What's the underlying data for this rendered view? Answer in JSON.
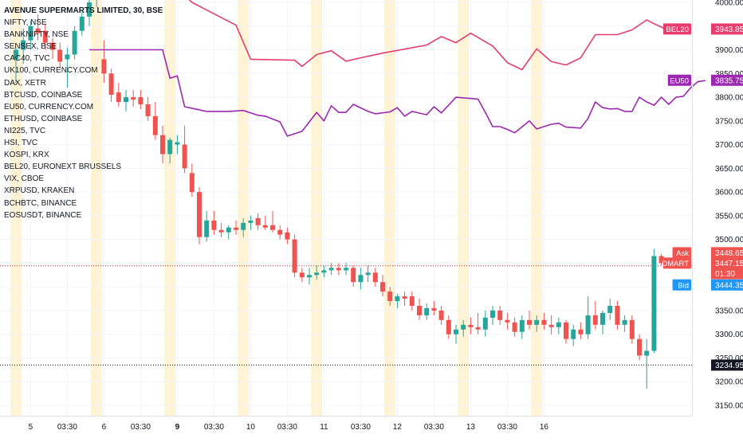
{
  "chart_data": {
    "type": "candlestick",
    "title": "AVENUE SUPERMARTS LIMITED, 30, BSE",
    "comparison_symbols": [
      "NIFTY, NSE",
      "BANKNIFTY, NSE",
      "SENSEX, BSE",
      "CAC40, TVC",
      "UK100, CURRENCY.COM",
      "DAX, XETR",
      "BTCUSD, COINBASE",
      "EU50, CURRENCY.COM",
      "ETHUSD, COINBASE",
      "NI225, TVC",
      "HSI, TVC",
      "KOSPI, KRX",
      "BEL20, EURONEXT BRUSSELS",
      "VIX, CBOE",
      "XRPUSD, KRAKEN",
      "BCHBTC, BINANCE",
      "EOSUSDT, BINANCE"
    ],
    "ylim": [
      3130,
      4030
    ],
    "y_ticks": [
      3150,
      3200,
      3250,
      3300,
      3350,
      3400,
      3450,
      3500,
      3550,
      3600,
      3650,
      3700,
      3750,
      3800,
      3850,
      3900,
      3950,
      4000
    ],
    "x_ticks": [
      {
        "label": "5",
        "bold": false,
        "i": 2
      },
      {
        "label": "03:30",
        "bold": false,
        "i": 7
      },
      {
        "label": "6",
        "bold": false,
        "i": 12
      },
      {
        "label": "03:30",
        "bold": false,
        "i": 17
      },
      {
        "label": "9",
        "bold": true,
        "i": 22
      },
      {
        "label": "03:30",
        "bold": false,
        "i": 27
      },
      {
        "label": "10",
        "bold": false,
        "i": 32
      },
      {
        "label": "03:30",
        "bold": false,
        "i": 37
      },
      {
        "label": "11",
        "bold": false,
        "i": 42
      },
      {
        "label": "03:30",
        "bold": false,
        "i": 47
      },
      {
        "label": "12",
        "bold": false,
        "i": 52
      },
      {
        "label": "03:30",
        "bold": false,
        "i": 57
      },
      {
        "label": "13",
        "bold": false,
        "i": 62
      },
      {
        "label": "03:30",
        "bold": false,
        "i": 67
      },
      {
        "label": "16",
        "bold": false,
        "i": 72
      }
    ],
    "session_bands": [
      0,
      11,
      21,
      31,
      41,
      51,
      61,
      71
    ],
    "candles": [
      [
        3880,
        3905,
        3830,
        3900
      ],
      [
        3900,
        3945,
        3870,
        3920
      ],
      [
        3920,
        3960,
        3900,
        3950
      ],
      [
        3945,
        3975,
        3920,
        3935
      ],
      [
        3940,
        3955,
        3900,
        3915
      ],
      [
        3915,
        3925,
        3880,
        3900
      ],
      [
        3900,
        3915,
        3860,
        3875
      ],
      [
        3880,
        3905,
        3820,
        3890
      ],
      [
        3890,
        3950,
        3880,
        3940
      ],
      [
        3940,
        3980,
        3930,
        3970
      ],
      [
        3970,
        4010,
        3950,
        4000
      ],
      [
        4010,
        4030,
        3990,
        4020
      ],
      [
        3880,
        3920,
        3830,
        3850
      ],
      [
        3850,
        3860,
        3790,
        3805
      ],
      [
        3810,
        3830,
        3780,
        3790
      ],
      [
        3790,
        3815,
        3770,
        3800
      ],
      [
        3800,
        3815,
        3780,
        3795
      ],
      [
        3800,
        3815,
        3775,
        3785
      ],
      [
        3785,
        3800,
        3750,
        3760
      ],
      [
        3760,
        3790,
        3710,
        3720
      ],
      [
        3720,
        3740,
        3660,
        3680
      ],
      [
        3680,
        3715,
        3660,
        3710
      ],
      [
        3700,
        3720,
        3680,
        3705
      ],
      [
        3700,
        3740,
        3640,
        3650
      ],
      [
        3640,
        3660,
        3590,
        3600
      ],
      [
        3600,
        3610,
        3490,
        3505
      ],
      [
        3505,
        3560,
        3495,
        3540
      ],
      [
        3540,
        3560,
        3510,
        3520
      ],
      [
        3520,
        3535,
        3505,
        3515
      ],
      [
        3515,
        3530,
        3500,
        3525
      ],
      [
        3525,
        3540,
        3510,
        3520
      ],
      [
        3520,
        3545,
        3505,
        3535
      ],
      [
        3535,
        3550,
        3520,
        3540
      ],
      [
        3545,
        3555,
        3520,
        3530
      ],
      [
        3530,
        3550,
        3520,
        3525
      ],
      [
        3530,
        3560,
        3515,
        3520
      ],
      [
        3520,
        3530,
        3500,
        3510
      ],
      [
        3515,
        3525,
        3490,
        3500
      ],
      [
        3500,
        3510,
        3420,
        3430
      ],
      [
        3430,
        3440,
        3410,
        3420
      ],
      [
        3420,
        3440,
        3405,
        3425
      ],
      [
        3425,
        3445,
        3415,
        3430
      ],
      [
        3430,
        3445,
        3420,
        3435
      ],
      [
        3435,
        3450,
        3425,
        3440
      ],
      [
        3440,
        3450,
        3425,
        3435
      ],
      [
        3435,
        3450,
        3425,
        3440
      ],
      [
        3440,
        3445,
        3400,
        3410
      ],
      [
        3410,
        3440,
        3395,
        3425
      ],
      [
        3425,
        3445,
        3410,
        3430
      ],
      [
        3430,
        3440,
        3400,
        3410
      ],
      [
        3410,
        3425,
        3380,
        3390
      ],
      [
        3390,
        3400,
        3360,
        3370
      ],
      [
        3370,
        3385,
        3355,
        3380
      ],
      [
        3380,
        3390,
        3360,
        3375
      ],
      [
        3380,
        3390,
        3350,
        3360
      ],
      [
        3360,
        3375,
        3330,
        3340
      ],
      [
        3340,
        3365,
        3330,
        3355
      ],
      [
        3355,
        3370,
        3340,
        3350
      ],
      [
        3350,
        3360,
        3320,
        3330
      ],
      [
        3330,
        3340,
        3290,
        3300
      ],
      [
        3300,
        3320,
        3280,
        3310
      ],
      [
        3310,
        3330,
        3295,
        3320
      ],
      [
        3320,
        3335,
        3300,
        3315
      ],
      [
        3315,
        3345,
        3300,
        3310
      ],
      [
        3310,
        3350,
        3295,
        3335
      ],
      [
        3335,
        3360,
        3320,
        3350
      ],
      [
        3350,
        3360,
        3320,
        3330
      ],
      [
        3330,
        3345,
        3310,
        3325
      ],
      [
        3325,
        3335,
        3295,
        3305
      ],
      [
        3305,
        3340,
        3290,
        3330
      ],
      [
        3330,
        3350,
        3310,
        3320
      ],
      [
        3320,
        3340,
        3305,
        3330
      ],
      [
        3330,
        3345,
        3310,
        3320
      ],
      [
        3320,
        3340,
        3300,
        3315
      ],
      [
        3315,
        3335,
        3300,
        3325
      ],
      [
        3325,
        3330,
        3280,
        3290
      ],
      [
        3290,
        3320,
        3275,
        3310
      ],
      [
        3310,
        3325,
        3290,
        3300
      ],
      [
        3300,
        3380,
        3290,
        3340
      ],
      [
        3340,
        3370,
        3310,
        3320
      ],
      [
        3320,
        3350,
        3300,
        3345
      ],
      [
        3345,
        3375,
        3330,
        3360
      ],
      [
        3360,
        3370,
        3310,
        3320
      ],
      [
        3320,
        3340,
        3305,
        3330
      ],
      [
        3330,
        3340,
        3280,
        3290
      ],
      [
        3290,
        3300,
        3245,
        3255
      ],
      [
        3255,
        3290,
        3185,
        3265
      ],
      [
        3265,
        3480,
        3260,
        3465
      ],
      [
        3465,
        3470,
        3445,
        3450
      ]
    ],
    "series": [
      {
        "name": "BEL20",
        "color": "#e73c6e",
        "points": [
          [
            10,
            4040
          ],
          [
            22,
            4030
          ],
          [
            24,
            4000
          ],
          [
            30,
            3952
          ],
          [
            32,
            3880
          ],
          [
            38,
            3878
          ],
          [
            39,
            3865
          ],
          [
            41,
            3890
          ],
          [
            43,
            3898
          ],
          [
            45,
            3876
          ],
          [
            47,
            3883
          ],
          [
            50,
            3893
          ],
          [
            56,
            3910
          ],
          [
            58,
            3928
          ],
          [
            60,
            3915
          ],
          [
            62,
            3935
          ],
          [
            65,
            3908
          ],
          [
            67,
            3873
          ],
          [
            69,
            3858
          ],
          [
            71,
            3902
          ],
          [
            73,
            3875
          ],
          [
            75,
            3868
          ],
          [
            77,
            3883
          ],
          [
            79,
            3932
          ],
          [
            82,
            3932
          ],
          [
            84,
            3942
          ],
          [
            86,
            3963
          ],
          [
            87,
            3955
          ],
          [
            88,
            3948
          ],
          [
            89,
            3940
          ],
          [
            90,
            3935
          ]
        ]
      },
      {
        "name": "EU50",
        "color": "#9c27b0",
        "points": [
          [
            10,
            3900
          ],
          [
            20,
            3900
          ],
          [
            21,
            3840
          ],
          [
            22,
            3845
          ],
          [
            23,
            3780
          ],
          [
            26,
            3770
          ],
          [
            29,
            3770
          ],
          [
            31,
            3772
          ],
          [
            33,
            3762
          ],
          [
            34,
            3760
          ],
          [
            36,
            3748
          ],
          [
            37,
            3718
          ],
          [
            39,
            3728
          ],
          [
            41,
            3768
          ],
          [
            42,
            3750
          ],
          [
            43,
            3782
          ],
          [
            44,
            3768
          ],
          [
            45,
            3768
          ],
          [
            46,
            3785
          ],
          [
            48,
            3770
          ],
          [
            49,
            3765
          ],
          [
            51,
            3769
          ],
          [
            52,
            3778
          ],
          [
            53,
            3760
          ],
          [
            54,
            3770
          ],
          [
            56,
            3763
          ],
          [
            57,
            3780
          ],
          [
            58,
            3767
          ],
          [
            60,
            3800
          ],
          [
            63,
            3796
          ],
          [
            64,
            3768
          ],
          [
            65,
            3738
          ],
          [
            66,
            3738
          ],
          [
            67,
            3732
          ],
          [
            68,
            3725
          ],
          [
            70,
            3750
          ],
          [
            71,
            3733
          ],
          [
            73,
            3743
          ],
          [
            74,
            3745
          ],
          [
            75,
            3737
          ],
          [
            77,
            3735
          ],
          [
            78,
            3755
          ],
          [
            79,
            3790
          ],
          [
            80,
            3778
          ],
          [
            81,
            3775
          ],
          [
            82,
            3776
          ],
          [
            83,
            3770
          ],
          [
            84,
            3770
          ],
          [
            85,
            3800
          ],
          [
            86,
            3790
          ],
          [
            87,
            3783
          ],
          [
            88,
            3800
          ],
          [
            89,
            3785
          ],
          [
            90,
            3800
          ],
          [
            91,
            3802
          ],
          [
            92,
            3820
          ],
          [
            93,
            3833
          ],
          [
            94,
            3835
          ]
        ]
      }
    ],
    "price_lines": [
      {
        "value": 3444.35,
        "color": "#e7293a"
      },
      {
        "value": 3234.95,
        "color": "#131722"
      }
    ],
    "axis_labels": [
      {
        "name": "BEL20",
        "value": "3943.85",
        "price": 3943.85,
        "color": "#e73c6e"
      },
      {
        "name": "EU50",
        "value": "3835.75",
        "price": 3835.75,
        "color": "#9c27b0"
      },
      {
        "name": "Ask",
        "value": "3448.65",
        "price": 3472,
        "color": "#ef5350"
      },
      {
        "name": "DMART",
        "value": "3447.15",
        "price": 3450,
        "color": "#ef5350"
      },
      {
        "name": "",
        "value": "01:30",
        "price": 3428,
        "color": "#ef5350"
      },
      {
        "name": "Bid",
        "value": "3444.35",
        "price": 3404,
        "color": "#2196f3"
      },
      {
        "name": "",
        "value": "3234.95",
        "price": 3234.95,
        "color": "#131722"
      }
    ],
    "colors": {
      "up": "#26a69a",
      "down": "#ef5350",
      "session": "#fff3d6",
      "grid": "#f0f3fa"
    }
  }
}
